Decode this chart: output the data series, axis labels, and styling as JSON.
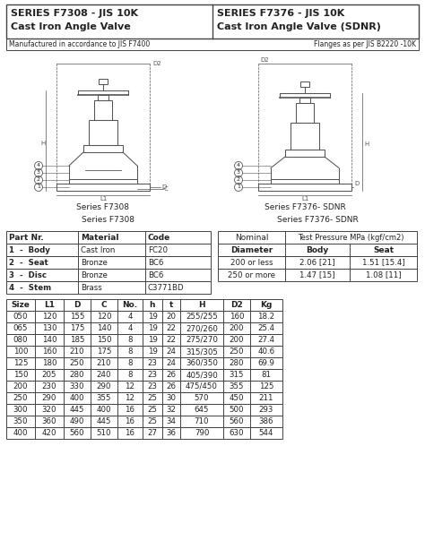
{
  "header_left_line1": "SERIES F7308 - JIS 10K",
  "header_left_line2": "Cast Iron Angle Valve",
  "header_right_line1": "SERIES F7376 - JIS 10K",
  "header_right_line2": "Cast Iron Angle Valve (SDNR)",
  "subheader_left": "Manufactured in accordance to JIS F7400",
  "subheader_right": "Flanges as per JIS B2220 -10K",
  "series_f7308_label": "Series F7308",
  "series_f7376_label": "Series F7376- SDNR",
  "mat_table_headers": [
    "Part Nr.",
    "Material",
    "Code"
  ],
  "mat_table_rows": [
    [
      "1  -  Body",
      "Cast Iron",
      "FC20"
    ],
    [
      "2  -  Seat",
      "Bronze",
      "BC6"
    ],
    [
      "3  -  Disc",
      "Bronze",
      "BC6"
    ],
    [
      "4  -  Stem",
      "Brass",
      "C3771BD"
    ]
  ],
  "pressure_table_rows": [
    [
      "200 or less",
      "2.06 [21]",
      "1.51 [15.4]"
    ],
    [
      "250 or more",
      "1.47 [15]",
      "1.08 [11]"
    ]
  ],
  "dim_table_headers": [
    "Size",
    "L1",
    "D",
    "C",
    "No.",
    "h",
    "t",
    "H",
    "D2",
    "Kg"
  ],
  "dim_table_rows": [
    [
      "050",
      "120",
      "155",
      "120",
      "4",
      "19",
      "20",
      "255/255",
      "160",
      "18.2"
    ],
    [
      "065",
      "130",
      "175",
      "140",
      "4",
      "19",
      "22",
      "270/260",
      "200",
      "25.4"
    ],
    [
      "080",
      "140",
      "185",
      "150",
      "8",
      "19",
      "22",
      "275/270",
      "200",
      "27.4"
    ],
    [
      "100",
      "160",
      "210",
      "175",
      "8",
      "19",
      "24",
      "315/305",
      "250",
      "40.6"
    ],
    [
      "125",
      "180",
      "250",
      "210",
      "8",
      "23",
      "24",
      "360/350",
      "280",
      "69.9"
    ],
    [
      "150",
      "205",
      "280",
      "240",
      "8",
      "23",
      "26",
      "405/390",
      "315",
      "81"
    ],
    [
      "200",
      "230",
      "330",
      "290",
      "12",
      "23",
      "26",
      "475/450",
      "355",
      "125"
    ],
    [
      "250",
      "290",
      "400",
      "355",
      "12",
      "25",
      "30",
      "570",
      "450",
      "211"
    ],
    [
      "300",
      "320",
      "445",
      "400",
      "16",
      "25",
      "32",
      "645",
      "500",
      "293"
    ],
    [
      "350",
      "360",
      "490",
      "445",
      "16",
      "25",
      "34",
      "710",
      "560",
      "386"
    ],
    [
      "400",
      "420",
      "560",
      "510",
      "16",
      "27",
      "36",
      "790",
      "630",
      "544"
    ]
  ],
  "bg_color": "#ffffff",
  "text_color": "#222222",
  "border_color": "#444444"
}
